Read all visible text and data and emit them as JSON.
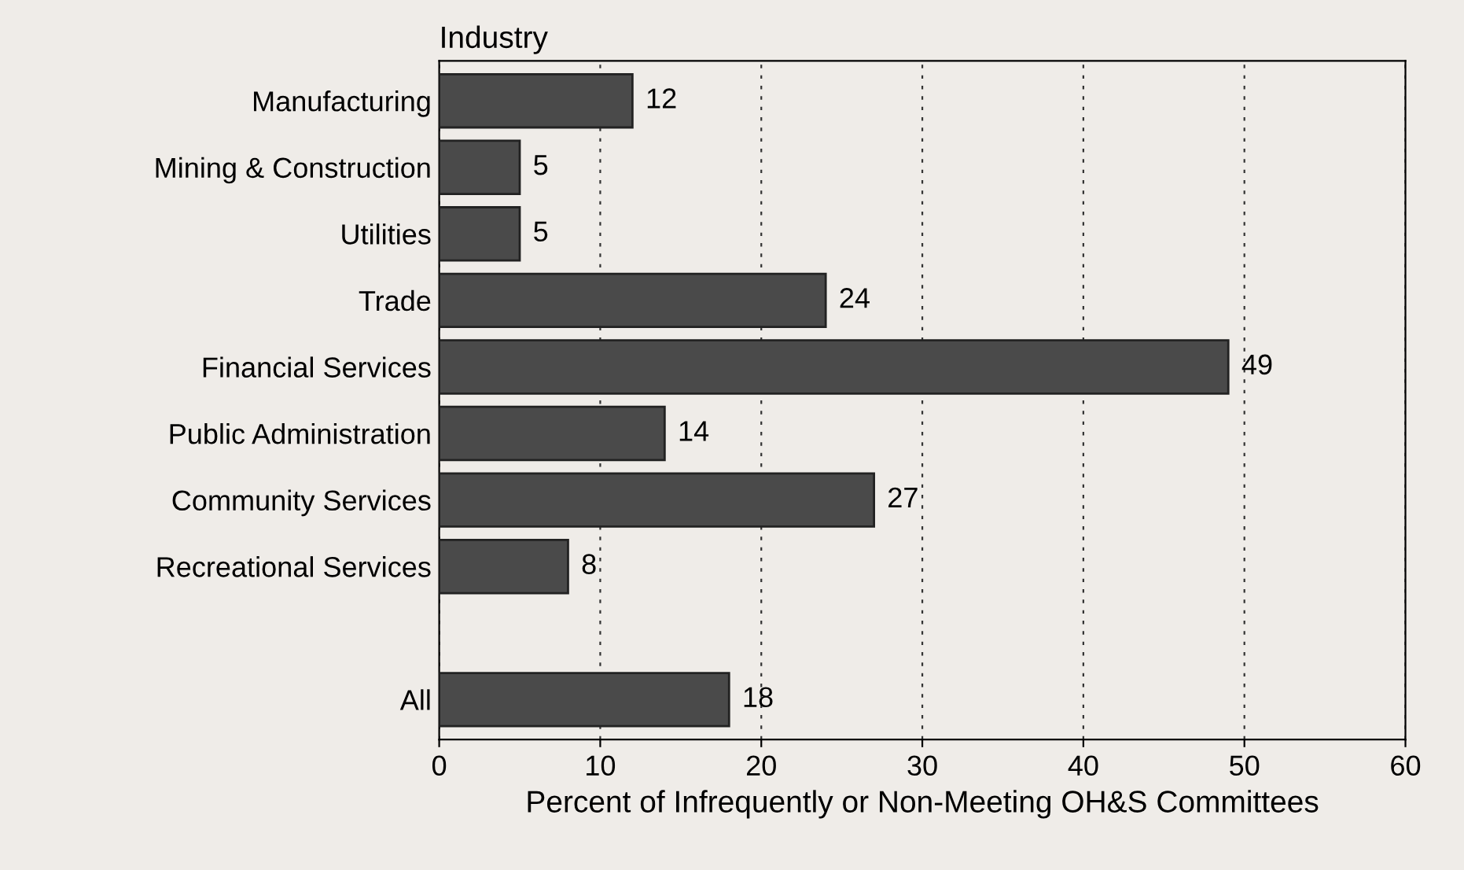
{
  "chart_data": {
    "type": "bar",
    "orientation": "horizontal",
    "title": "Industry",
    "xlabel": "Percent of Infrequently or Non-Meeting OH&S Committees",
    "categories": [
      "Manufacturing",
      "Mining & Construction",
      "Utilities",
      "Trade",
      "Financial Services",
      "Public Administration",
      "Community Services",
      "Recreational Services",
      null,
      "All"
    ],
    "values": [
      12,
      5,
      5,
      24,
      49,
      14,
      27,
      8,
      null,
      18
    ],
    "color": "#4a4a4a",
    "data_labels": true,
    "xlim": [
      0,
      60
    ],
    "xticks": [
      0,
      10,
      20,
      30,
      40,
      50,
      60
    ],
    "grid": "x",
    "legend": false
  }
}
